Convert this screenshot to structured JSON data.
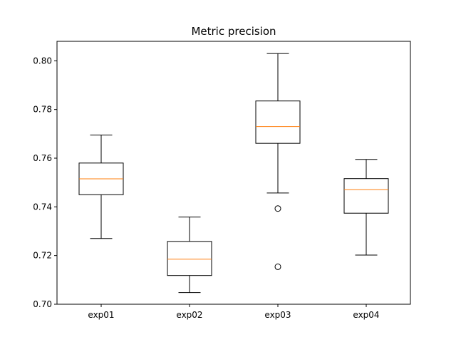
{
  "chart_data": {
    "type": "box",
    "title": "Metric precision",
    "xlabel": "",
    "ylabel": "",
    "ylim": [
      0.7,
      0.808
    ],
    "yticks": [
      "0.70",
      "0.72",
      "0.74",
      "0.76",
      "0.78",
      "0.80"
    ],
    "grid": false,
    "colors": {
      "box": "#000000",
      "median": "#ff7f0e",
      "frame": "#000000"
    },
    "categories": [
      "exp01",
      "exp02",
      "exp03",
      "exp04"
    ],
    "boxes": [
      {
        "label": "exp01",
        "whisker_low": 0.727,
        "q1": 0.745,
        "median": 0.7515,
        "q3": 0.758,
        "whisker_high": 0.7695,
        "outliers": []
      },
      {
        "label": "exp02",
        "whisker_low": 0.7048,
        "q1": 0.7118,
        "median": 0.7185,
        "q3": 0.7258,
        "whisker_high": 0.7358,
        "outliers": []
      },
      {
        "label": "exp03",
        "whisker_low": 0.7457,
        "q1": 0.7661,
        "median": 0.773,
        "q3": 0.7835,
        "whisker_high": 0.803,
        "outliers": [
          0.7393,
          0.7154
        ]
      },
      {
        "label": "exp04",
        "whisker_low": 0.7202,
        "q1": 0.7374,
        "median": 0.7471,
        "q3": 0.7516,
        "whisker_high": 0.7595,
        "outliers": []
      }
    ]
  }
}
